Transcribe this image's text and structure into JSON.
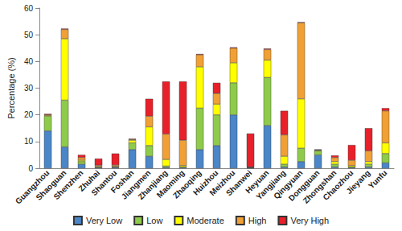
{
  "chart_data": {
    "type": "bar",
    "stacked": true,
    "grid": false,
    "legend": "bottom",
    "y_label": "Percentage (%)",
    "categories": [
      "Guangzhou",
      "Shaoguan",
      "Shenzhen",
      "Zhuhai",
      "Shantou",
      "Foshan",
      "Jiangmen",
      "Zhanjiang",
      "Maoming",
      "Zhaoqing",
      "Huizhou",
      "Meizhou",
      "Shanwei",
      "Heyuan",
      "Yangjiang",
      "Qingyuan",
      "Dongguan",
      "Zhongshan",
      "Chaozhou",
      "Jieyang",
      "Yunfu"
    ],
    "series": [
      {
        "name": "Very Low",
        "color": "#4a86c8",
        "values": [
          14,
          8,
          1.5,
          0.2,
          0.3,
          7,
          4.5,
          0.3,
          0.2,
          7,
          8.5,
          20,
          0.1,
          16,
          0.5,
          2.5,
          5,
          0.5,
          0.2,
          0.5,
          2
        ]
      },
      {
        "name": "Low",
        "color": "#8fcb4a",
        "values": [
          5.5,
          17.5,
          1,
          0.2,
          0.2,
          2.5,
          4,
          0.5,
          0.3,
          15.5,
          11.5,
          12,
          0.1,
          18,
          1,
          5,
          1.5,
          1,
          0.3,
          1,
          3.5
        ]
      },
      {
        "name": "Moderate",
        "color": "#ffff00",
        "values": [
          0.3,
          23,
          0.5,
          0.2,
          0.2,
          1,
          7,
          2.5,
          0.5,
          15.5,
          4,
          7.5,
          0.1,
          6.5,
          3,
          18.5,
          0.2,
          1,
          0.5,
          1,
          4
        ]
      },
      {
        "name": "High",
        "color": "#f0a035",
        "values": [
          0.3,
          3.5,
          1,
          0.5,
          0.5,
          0.3,
          4,
          9.5,
          9.5,
          4.5,
          4,
          5.5,
          0.2,
          4,
          8,
          28.5,
          0.2,
          1.5,
          2,
          4,
          12
        ]
      },
      {
        "name": "Very High",
        "color": "#e8202a",
        "values": [
          0.2,
          0.3,
          1,
          2.5,
          4.3,
          0.2,
          6.5,
          19.7,
          22,
          0.3,
          4,
          0.3,
          12.5,
          0.3,
          9,
          0.2,
          0.1,
          0.8,
          5.7,
          8.5,
          1
        ]
      }
    ],
    "ylim": [
      0,
      60
    ],
    "yticks": [
      0,
      10,
      20,
      30,
      40,
      50,
      60
    ]
  }
}
